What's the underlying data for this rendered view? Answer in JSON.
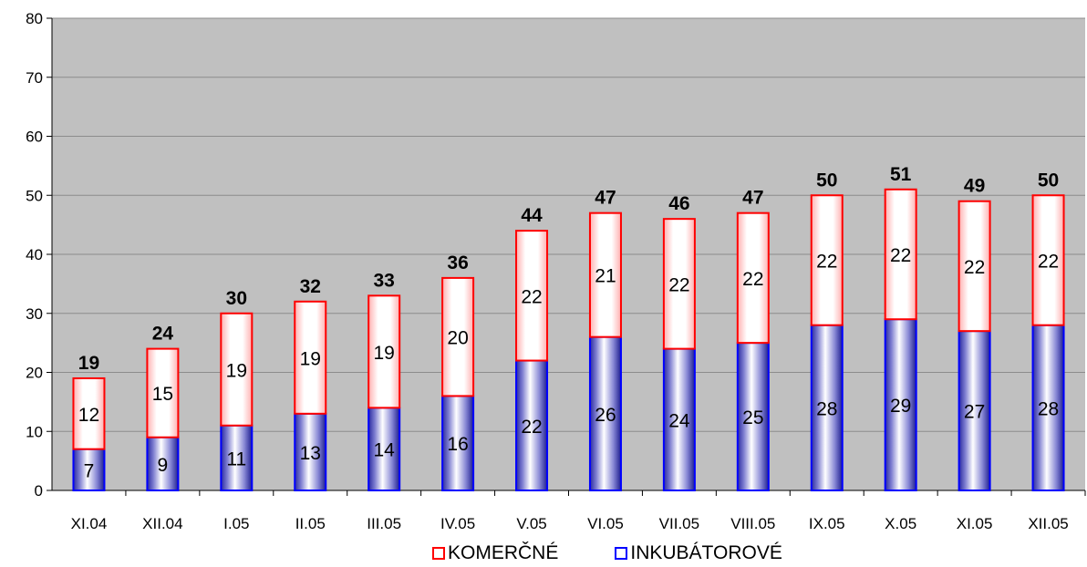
{
  "chart_data": {
    "type": "bar",
    "stacked": true,
    "categories": [
      "XI.04",
      "XII.04",
      "I.05",
      "II.05",
      "III.05",
      "IV.05",
      "V.05",
      "VI.05",
      "VII.05",
      "VIII.05",
      "IX.05",
      "X.05",
      "XI.05",
      "XII.05"
    ],
    "series": [
      {
        "name": "INKUBÁTOROVÉ",
        "values": [
          7,
          9,
          11,
          13,
          14,
          16,
          22,
          26,
          24,
          25,
          28,
          29,
          27,
          28
        ],
        "color": "#0000ff"
      },
      {
        "name": "KOMERČNÉ",
        "values": [
          12,
          15,
          19,
          19,
          19,
          20,
          22,
          21,
          22,
          22,
          22,
          22,
          22,
          22
        ],
        "color": "#ff0000"
      }
    ],
    "totals": [
      19,
      24,
      30,
      32,
      33,
      36,
      44,
      47,
      46,
      47,
      50,
      51,
      49,
      50
    ],
    "ylim": [
      0,
      80
    ],
    "yticks": [
      0,
      10,
      20,
      30,
      40,
      50,
      60,
      70,
      80
    ],
    "grid": true,
    "plot_background": "#c0c0c0",
    "legend_position": "bottom"
  },
  "legend": {
    "items": [
      {
        "label": "KOMERČNÉ",
        "color": "#ff0000"
      },
      {
        "label": "INKUBÁTOROVÉ",
        "color": "#0000ff"
      }
    ]
  }
}
